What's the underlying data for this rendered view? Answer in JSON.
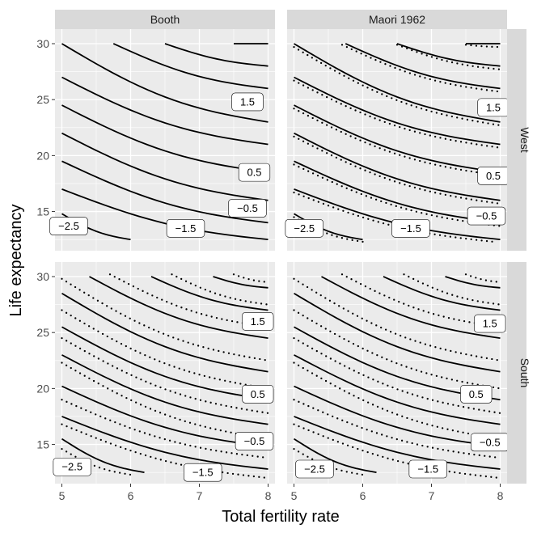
{
  "chart_data": {
    "type": "line",
    "xlabel": "Total fertility rate",
    "ylabel": "Life expectancy",
    "xlim": [
      4.9,
      8.1
    ],
    "ylim": [
      11.5,
      31.3
    ],
    "x_ticks": [
      5,
      6,
      7,
      8
    ],
    "y_ticks": [
      15,
      20,
      25,
      30
    ],
    "columns": [
      "Booth",
      "Maori 1962"
    ],
    "rows": [
      "West",
      "South"
    ],
    "grid": true,
    "contour_labels": [
      "-2.5",
      "-1.5",
      "-0.5",
      "0.5",
      "1.5"
    ],
    "panels": [
      {
        "column": "Booth",
        "row": "West",
        "solid": [
          {
            "start": [
              5.0,
              14.8
            ],
            "end": [
              6.0,
              12.5
            ]
          },
          {
            "start": [
              5.0,
              17.0
            ],
            "end": [
              8.0,
              12.5
            ]
          },
          {
            "start": [
              5.0,
              19.5
            ],
            "end": [
              8.0,
              14.0
            ]
          },
          {
            "start": [
              5.0,
              22.0
            ],
            "end": [
              8.0,
              16.0
            ]
          },
          {
            "start": [
              5.0,
              24.5
            ],
            "end": [
              8.0,
              18.5
            ]
          },
          {
            "start": [
              5.0,
              27.0
            ],
            "end": [
              8.0,
              21.0
            ]
          },
          {
            "start": [
              5.0,
              30.0
            ],
            "end": [
              8.0,
              23.0
            ]
          },
          {
            "start": [
              5.75,
              30.0
            ],
            "end": [
              8.0,
              26.0
            ]
          },
          {
            "start": [
              6.5,
              30.0
            ],
            "end": [
              8.0,
              28.0
            ]
          },
          {
            "start": [
              7.5,
              30.0
            ],
            "end": [
              8.0,
              30.0
            ]
          }
        ],
        "dotted": [],
        "labels": [
          {
            "text": "-2.5",
            "x": 5.1,
            "y": 13.7
          },
          {
            "text": "-1.5",
            "x": 6.8,
            "y": 13.5
          },
          {
            "text": "-0.5",
            "x": 7.7,
            "y": 15.3
          },
          {
            "text": "0.5",
            "x": 7.8,
            "y": 18.5
          },
          {
            "text": "1.5",
            "x": 7.7,
            "y": 24.8
          }
        ]
      },
      {
        "column": "Maori 1962",
        "row": "West",
        "solid": [
          {
            "start": [
              5.0,
              14.8
            ],
            "end": [
              6.0,
              12.5
            ]
          },
          {
            "start": [
              5.0,
              17.0
            ],
            "end": [
              8.0,
              12.5
            ]
          },
          {
            "start": [
              5.0,
              19.5
            ],
            "end": [
              8.0,
              14.0
            ]
          },
          {
            "start": [
              5.0,
              22.0
            ],
            "end": [
              8.0,
              16.0
            ]
          },
          {
            "start": [
              5.0,
              24.5
            ],
            "end": [
              8.0,
              18.5
            ]
          },
          {
            "start": [
              5.0,
              27.0
            ],
            "end": [
              8.0,
              21.0
            ]
          },
          {
            "start": [
              5.0,
              30.0
            ],
            "end": [
              8.0,
              23.0
            ]
          },
          {
            "start": [
              5.75,
              30.0
            ],
            "end": [
              8.0,
              26.0
            ]
          },
          {
            "start": [
              6.5,
              30.0
            ],
            "end": [
              8.0,
              28.0
            ]
          },
          {
            "start": [
              7.5,
              30.0
            ],
            "end": [
              8.0,
              30.0
            ]
          }
        ],
        "dotted": [
          {
            "start": [
              5.0,
              14.5
            ],
            "end": [
              6.0,
              12.3
            ]
          },
          {
            "start": [
              5.0,
              16.7
            ],
            "end": [
              7.9,
              12.3
            ]
          },
          {
            "start": [
              5.0,
              19.2
            ],
            "end": [
              8.0,
              13.7
            ]
          },
          {
            "start": [
              5.0,
              21.7
            ],
            "end": [
              8.0,
              15.7
            ]
          },
          {
            "start": [
              5.0,
              24.2
            ],
            "end": [
              8.0,
              18.2
            ]
          },
          {
            "start": [
              5.0,
              26.7
            ],
            "end": [
              8.0,
              20.7
            ]
          },
          {
            "start": [
              5.0,
              29.7
            ],
            "end": [
              8.0,
              22.7
            ]
          },
          {
            "start": [
              5.7,
              29.9
            ],
            "end": [
              8.0,
              25.7
            ]
          },
          {
            "start": [
              6.5,
              29.9
            ],
            "end": [
              8.0,
              27.7
            ]
          },
          {
            "start": [
              7.5,
              29.9
            ],
            "end": [
              8.0,
              29.7
            ]
          }
        ],
        "labels": [
          {
            "text": "-2.5",
            "x": 5.15,
            "y": 13.5
          },
          {
            "text": "-1.5",
            "x": 6.7,
            "y": 13.5
          },
          {
            "text": "-0.5",
            "x": 7.8,
            "y": 14.6
          },
          {
            "text": "0.5",
            "x": 7.9,
            "y": 18.2
          },
          {
            "text": "1.5",
            "x": 7.9,
            "y": 24.3
          }
        ]
      },
      {
        "column": "Booth",
        "row": "South",
        "solid": [
          {
            "start": [
              5.0,
              15.5
            ],
            "end": [
              6.2,
              12.5
            ]
          },
          {
            "start": [
              5.0,
              17.5
            ],
            "end": [
              8.0,
              12.8
            ]
          },
          {
            "start": [
              5.0,
              20.2
            ],
            "end": [
              8.0,
              14.8
            ]
          },
          {
            "start": [
              5.0,
              23.0
            ],
            "end": [
              8.0,
              16.8
            ]
          },
          {
            "start": [
              5.0,
              25.5
            ],
            "end": [
              8.0,
              19.0
            ]
          },
          {
            "start": [
              5.0,
              28.5
            ],
            "end": [
              8.0,
              21.5
            ]
          },
          {
            "start": [
              5.4,
              30.0
            ],
            "end": [
              8.0,
              24.5
            ]
          },
          {
            "start": [
              6.3,
              30.0
            ],
            "end": [
              8.0,
              27.0
            ]
          },
          {
            "start": [
              7.2,
              30.0
            ],
            "end": [
              8.0,
              29.0
            ]
          }
        ],
        "dotted": [
          {
            "start": [
              5.0,
              14.6
            ],
            "end": [
              6.0,
              12.3
            ]
          },
          {
            "start": [
              5.0,
              16.8
            ],
            "end": [
              8.0,
              12.0
            ]
          },
          {
            "start": [
              5.0,
              19.0
            ],
            "end": [
              8.0,
              13.8
            ]
          },
          {
            "start": [
              5.0,
              22.3
            ],
            "end": [
              8.0,
              15.5
            ]
          },
          {
            "start": [
              5.0,
              24.5
            ],
            "end": [
              8.0,
              17.8
            ]
          },
          {
            "start": [
              5.0,
              27.0
            ],
            "end": [
              8.0,
              20.0
            ]
          },
          {
            "start": [
              5.0,
              29.8
            ],
            "end": [
              8.0,
              22.5
            ]
          },
          {
            "start": [
              5.7,
              30.2
            ],
            "end": [
              8.0,
              25.5
            ]
          },
          {
            "start": [
              6.6,
              30.2
            ],
            "end": [
              8.0,
              27.5
            ]
          },
          {
            "start": [
              7.5,
              30.2
            ],
            "end": [
              8.0,
              29.5
            ]
          }
        ],
        "labels": [
          {
            "text": "-2.5",
            "x": 5.15,
            "y": 13.0
          },
          {
            "text": "-1.5",
            "x": 7.05,
            "y": 12.5
          },
          {
            "text": "-0.5",
            "x": 7.8,
            "y": 15.3
          },
          {
            "text": "0.5",
            "x": 7.85,
            "y": 19.5
          },
          {
            "text": "1.5",
            "x": 7.85,
            "y": 26.0
          }
        ]
      },
      {
        "column": "Maori 1962",
        "row": "South",
        "solid": [
          {
            "start": [
              5.0,
              15.5
            ],
            "end": [
              6.2,
              12.5
            ]
          },
          {
            "start": [
              5.0,
              17.5
            ],
            "end": [
              8.0,
              12.8
            ]
          },
          {
            "start": [
              5.0,
              20.2
            ],
            "end": [
              8.0,
              14.8
            ]
          },
          {
            "start": [
              5.0,
              23.0
            ],
            "end": [
              8.0,
              16.8
            ]
          },
          {
            "start": [
              5.0,
              25.5
            ],
            "end": [
              8.0,
              19.0
            ]
          },
          {
            "start": [
              5.0,
              28.5
            ],
            "end": [
              8.0,
              21.5
            ]
          },
          {
            "start": [
              5.4,
              30.0
            ],
            "end": [
              8.0,
              24.5
            ]
          },
          {
            "start": [
              6.3,
              30.0
            ],
            "end": [
              8.0,
              27.0
            ]
          },
          {
            "start": [
              7.2,
              30.0
            ],
            "end": [
              8.0,
              29.0
            ]
          }
        ],
        "dotted": [
          {
            "start": [
              5.0,
              14.6
            ],
            "end": [
              6.0,
              12.3
            ]
          },
          {
            "start": [
              5.0,
              16.8
            ],
            "end": [
              8.0,
              12.0
            ]
          },
          {
            "start": [
              5.0,
              19.0
            ],
            "end": [
              8.0,
              13.8
            ]
          },
          {
            "start": [
              5.0,
              22.3
            ],
            "end": [
              8.0,
              15.5
            ]
          },
          {
            "start": [
              5.0,
              24.5
            ],
            "end": [
              8.0,
              17.8
            ]
          },
          {
            "start": [
              5.0,
              27.0
            ],
            "end": [
              8.0,
              20.0
            ]
          },
          {
            "start": [
              5.0,
              29.8
            ],
            "end": [
              8.0,
              22.5
            ]
          },
          {
            "start": [
              5.7,
              30.2
            ],
            "end": [
              8.0,
              25.5
            ]
          },
          {
            "start": [
              6.6,
              30.2
            ],
            "end": [
              8.0,
              27.5
            ]
          },
          {
            "start": [
              7.5,
              30.2
            ],
            "end": [
              8.0,
              29.5
            ]
          }
        ],
        "labels": [
          {
            "text": "-2.5",
            "x": 5.3,
            "y": 12.8
          },
          {
            "text": "-1.5",
            "x": 6.95,
            "y": 12.8
          },
          {
            "text": "-0.5",
            "x": 7.85,
            "y": 15.2
          },
          {
            "text": "0.5",
            "x": 7.65,
            "y": 19.5
          },
          {
            "text": "1.5",
            "x": 7.85,
            "y": 25.8
          }
        ]
      }
    ]
  },
  "colors": {
    "panel_background": "#ebebeb",
    "grid_line": "#ffffff",
    "strip_background": "#d9d9d9",
    "line": "#000000",
    "label_box_fill": "#ffffff",
    "text": "#1a1a1a",
    "tick_text": "#4d4d4d"
  }
}
